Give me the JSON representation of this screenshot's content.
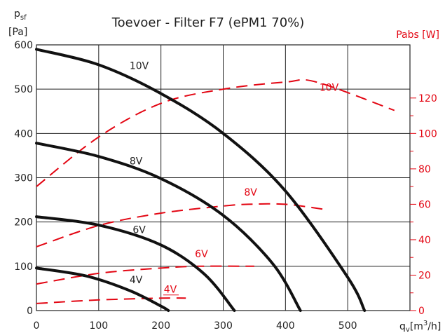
{
  "chart_data": {
    "type": "line",
    "title": "Toevoer - Filter F7 (ePM1 70%)",
    "xlabel": {
      "main": "q",
      "sub": "v",
      "unit_prefix": "[m",
      "unit_sup": "3",
      "unit_suffix": "/h]"
    },
    "ylabel_left": {
      "main": "p",
      "sub": "sf",
      "unit": "[Pa]"
    },
    "ylabel_right": "Pabs [W]",
    "xlim": [
      0,
      600
    ],
    "ylim_left": [
      0,
      600
    ],
    "ylim_right": [
      0,
      150
    ],
    "x_ticks": [
      "0",
      "100",
      "200",
      "300",
      "400",
      "500"
    ],
    "y_left_ticks": [
      "0",
      "100",
      "200",
      "300",
      "400",
      "500",
      "600"
    ],
    "y_right_ticks": [
      "0",
      "20",
      "40",
      "60",
      "80",
      "100",
      "120"
    ],
    "grid": true,
    "pressure_series": [
      {
        "name": "10V",
        "label_at": [
          165,
          545
        ],
        "x": [
          0,
          100,
          200,
          300,
          400,
          500,
          527
        ],
        "y": [
          590,
          555,
          490,
          400,
          270,
          75,
          0
        ]
      },
      {
        "name": "8V",
        "label_at": [
          160,
          330
        ],
        "x": [
          0,
          100,
          200,
          300,
          380,
          424
        ],
        "y": [
          378,
          348,
          298,
          215,
          105,
          0
        ]
      },
      {
        "name": "6V",
        "label_at": [
          165,
          175
        ],
        "x": [
          0,
          100,
          200,
          270,
          318
        ],
        "y": [
          212,
          193,
          148,
          82,
          0
        ]
      },
      {
        "name": "4V",
        "label_at": [
          160,
          62
        ],
        "x": [
          0,
          80,
          150,
          200,
          212
        ],
        "y": [
          96,
          78,
          45,
          10,
          0
        ]
      }
    ],
    "power_series": [
      {
        "name": "10V",
        "label_at": [
          470,
          124
        ],
        "x": [
          0,
          100,
          200,
          300,
          400,
          450,
          575
        ],
        "y": [
          70,
          98,
          117,
          125,
          129,
          129,
          113
        ]
      },
      {
        "name": "8V",
        "label_at": [
          344,
          65
        ],
        "x": [
          0,
          100,
          200,
          300,
          340,
          400,
          465
        ],
        "y": [
          36,
          48,
          55,
          59,
          60,
          60,
          57
        ]
      },
      {
        "name": "6V",
        "label_at": [
          265,
          30
        ],
        "x": [
          0,
          100,
          200,
          260,
          350
        ],
        "y": [
          15,
          21,
          24,
          25,
          25
        ]
      },
      {
        "name": "4V",
        "label_at": [
          215,
          10
        ],
        "x": [
          0,
          100,
          200,
          240
        ],
        "y": [
          4,
          6,
          7,
          7
        ]
      }
    ]
  }
}
